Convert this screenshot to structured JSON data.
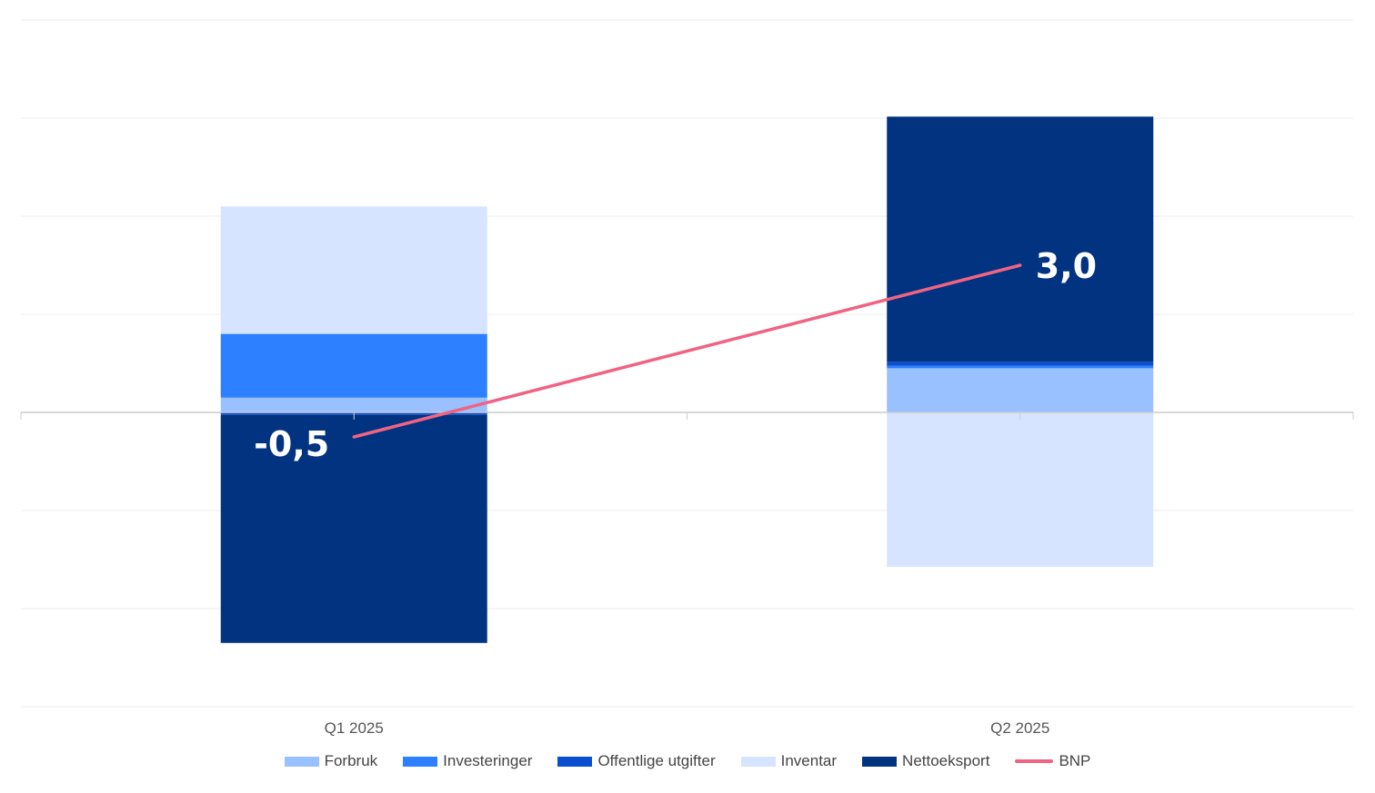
{
  "chart_data": {
    "type": "bar",
    "stacked": true,
    "categories": [
      "Q1 2025",
      "Q2 2025"
    ],
    "series": [
      {
        "name": "Forbruk",
        "values": [
          0.3,
          0.9
        ],
        "color": "#99c0ff"
      },
      {
        "name": "Investeringer",
        "values": [
          1.3,
          0.05
        ],
        "color": "#2d80ff"
      },
      {
        "name": "Offentlige utgifter",
        "values": [
          -0.05,
          0.08
        ],
        "color": "#0a4fd0"
      },
      {
        "name": "Inventar",
        "values": [
          2.6,
          -3.15
        ],
        "color": "#d6e4ff"
      },
      {
        "name": "Nettoeksport",
        "values": [
          -4.65,
          5.0
        ],
        "color": "#013380"
      }
    ],
    "line": {
      "name": "BNP",
      "values": [
        -0.5,
        3.0
      ],
      "labels": [
        "-0,5",
        "3,0"
      ],
      "color": "#f06383"
    },
    "ylim": [
      -6,
      8
    ],
    "grid": true,
    "legend_position": "bottom"
  }
}
